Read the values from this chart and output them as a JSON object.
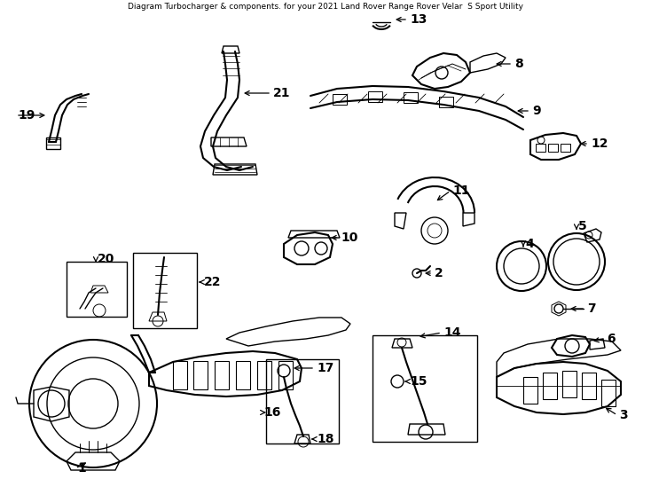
{
  "title": "Diagram Turbocharger & components. for your 2021 Land Rover Range Rover Velar  S Sport Utility",
  "bg_color": "#ffffff",
  "label_color": "#000000",
  "line_color": "#000000",
  "fig_width": 7.34,
  "fig_height": 5.4,
  "dpi": 100,
  "border_color": "#cccccc"
}
